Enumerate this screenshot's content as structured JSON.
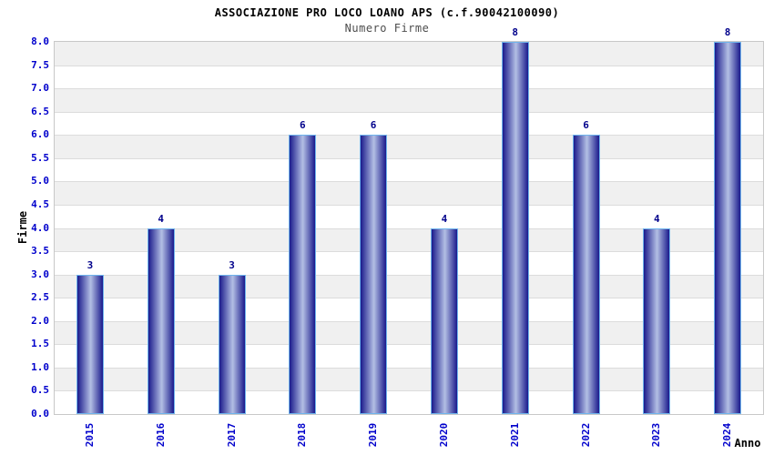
{
  "chart_data": {
    "type": "bar",
    "title": "ASSOCIAZIONE PRO LOCO LOANO APS (c.f.90042100090)",
    "subtitle": "Numero Firme",
    "xlabel": "Anno",
    "ylabel": "Firme",
    "categories": [
      "2015",
      "2016",
      "2017",
      "2018",
      "2019",
      "2020",
      "2021",
      "2022",
      "2023",
      "2024"
    ],
    "values": [
      3,
      4,
      3,
      6,
      6,
      4,
      8,
      6,
      4,
      8
    ],
    "value_labels": [
      "3",
      "4",
      "3",
      "6",
      "6",
      "4",
      "8",
      "6",
      "4",
      "8"
    ],
    "ylim": [
      0,
      8
    ],
    "ytick_step": 0.5,
    "yticks": [
      "0.0",
      "0.5",
      "1.0",
      "1.5",
      "2.0",
      "2.5",
      "3.0",
      "3.5",
      "4.0",
      "4.5",
      "5.0",
      "5.5",
      "6.0",
      "6.5",
      "7.0",
      "7.5",
      "8.0"
    ],
    "legend": "none",
    "grid": "alternating horizontal bands, gray topmost",
    "colors": {
      "bar_gradient_dark": "#1a1a8c",
      "bar_gradient_light": "#b3bfe4",
      "bar_border": "#6fb4ec",
      "value_label": "#00008b",
      "tick_label": "#0000cc",
      "title": "#000000",
      "subtitle": "#4d4d4d",
      "band_gray": "#f0f0f0",
      "band_white": "#ffffff",
      "grid_line": "#dcdcdc",
      "plot_border": "#c8c8c8"
    }
  }
}
